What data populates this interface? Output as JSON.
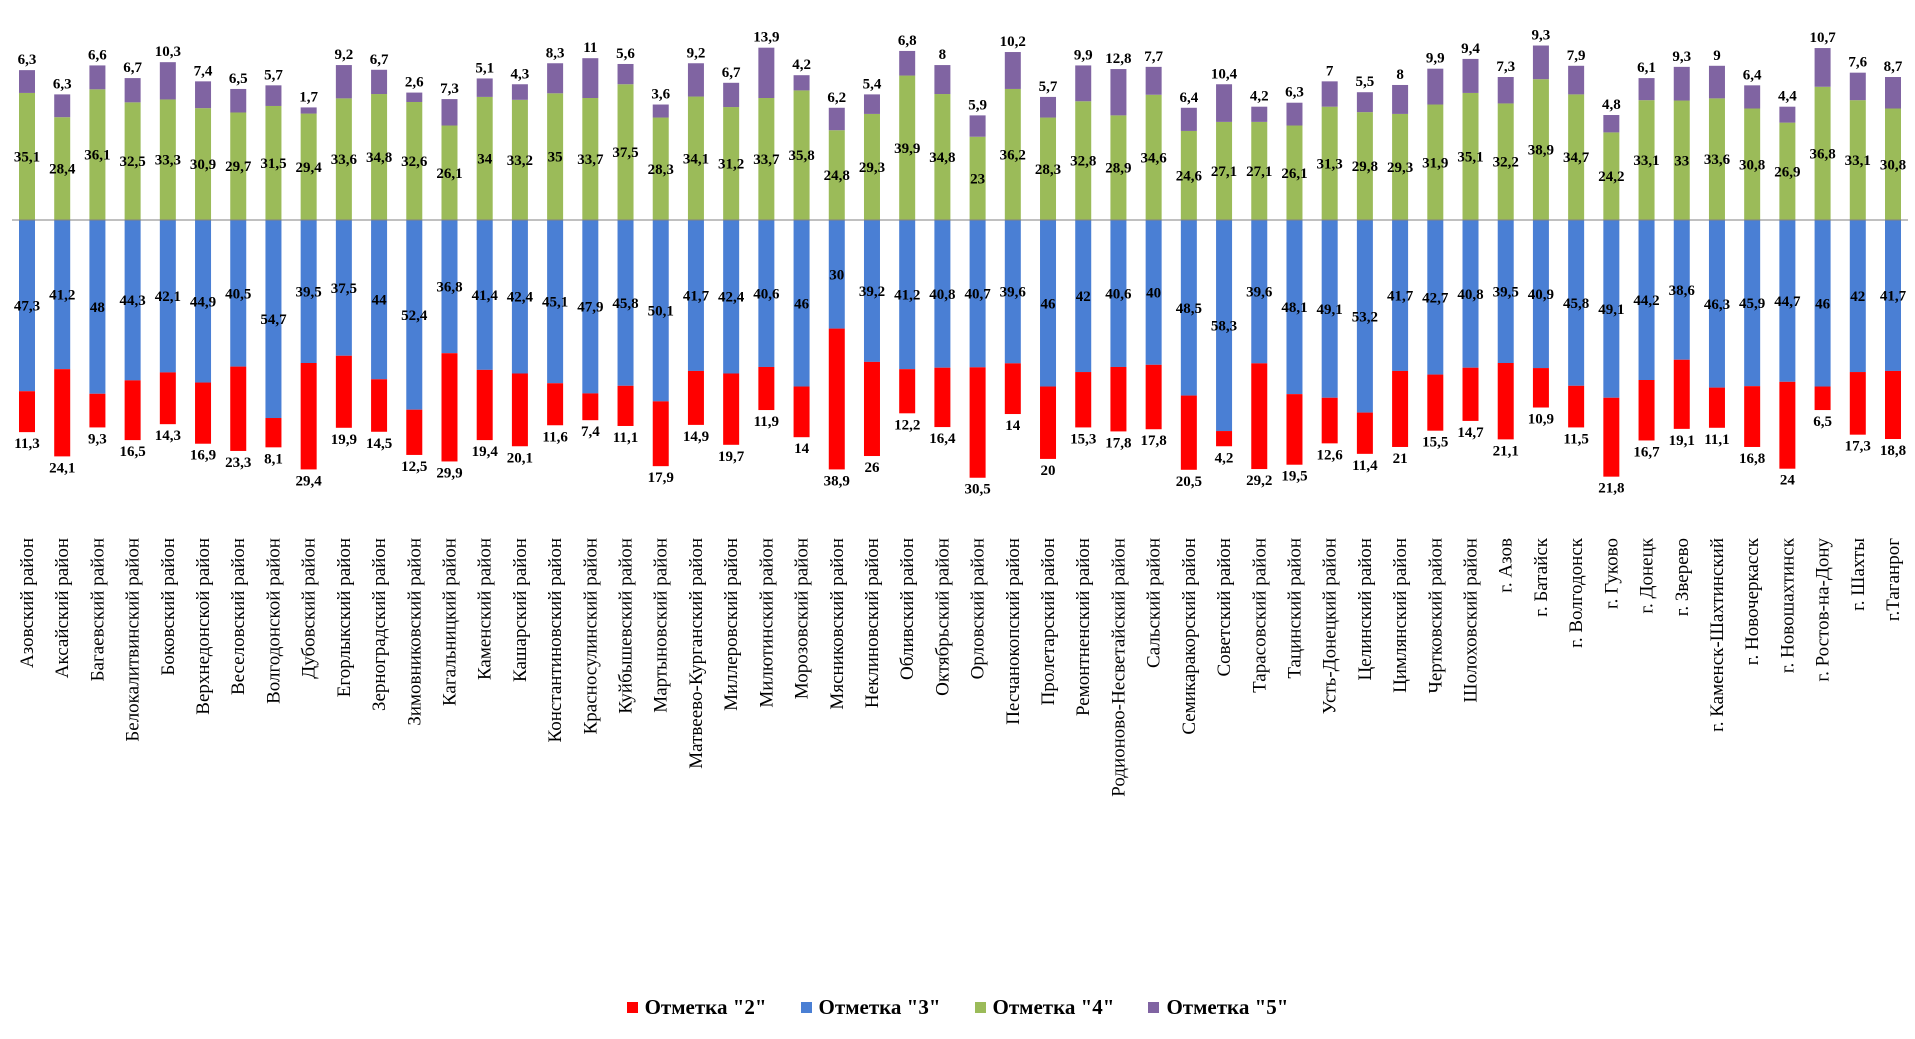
{
  "chart_data": {
    "type": "bar",
    "title": "",
    "xlabel": "",
    "ylabel": "",
    "legend_position": "bottom",
    "grid": false,
    "categories": [
      "Азовский район",
      "Аксайский район",
      "Багаевский район",
      "Белокалитвинский район",
      "Боковский район",
      "Верхнедонской район",
      "Веселовский район",
      "Волгодонской район",
      "Дубовский район",
      "Егорлыкский район",
      "Зерноградский район",
      "Зимовниковский район",
      "Кагальницкий район",
      "Каменский район",
      "Кашарский район",
      "Константиновский район",
      "Красносулинский район",
      "Куйбышевский район",
      "Мартыновский район",
      "Матвеево-Курганский район",
      "Миллеровский район",
      "Милютинский район",
      "Морозовский район",
      "Мясниковский район",
      "Неклиновский район",
      "Обливский район",
      "Октябрьский район",
      "Орловский район",
      "Песчанокопский район",
      "Пролетарский район",
      "Ремонтненский район",
      "Родионово-Несветайский район",
      "Сальский район",
      "Семикаракорский район",
      "Советский район",
      "Тарасовский район",
      "Тацинский район",
      "Усть-Донецкий район",
      "Целинский район",
      "Цимлянский район",
      "Чертковский район",
      "Шолоховский район",
      "г. Азов",
      "г. Батайск",
      "г. Волгодонск",
      "г. Гуково",
      "г. Донецк",
      "г. Зверево",
      "г. Каменск-Шахтинский",
      "г. Новочеркасск",
      "г. Новошахтинск",
      "г. Ростов-на-Дону",
      "г. Шахты",
      "г.Таганрог"
    ],
    "series": [
      {
        "name": "Отметка \"2\"",
        "color": "#ff0000",
        "direction": "down",
        "values": [
          11.3,
          24.1,
          9.3,
          16.5,
          14.3,
          16.9,
          23.3,
          8.1,
          29.4,
          19.9,
          14.5,
          12.5,
          29.9,
          19.4,
          20.1,
          11.6,
          7.4,
          11.1,
          17.9,
          14.9,
          19.7,
          11.9,
          14,
          38.9,
          26,
          12.2,
          16.4,
          30.5,
          14,
          20,
          15.3,
          17.8,
          17.8,
          20.5,
          4.2,
          29.2,
          19.5,
          12.6,
          11.4,
          21,
          15.5,
          14.7,
          21.1,
          10.9,
          11.5,
          21.8,
          16.7,
          19.1,
          11.1,
          16.8,
          24,
          6.5,
          17.3,
          18.8
        ]
      },
      {
        "name": "Отметка \"3\"",
        "color": "#4a7fd4",
        "direction": "down",
        "values": [
          47.3,
          41.2,
          48,
          44.3,
          42.1,
          44.9,
          40.5,
          54.7,
          39.5,
          37.5,
          44,
          52.4,
          36.8,
          41.4,
          42.4,
          45.1,
          47.9,
          45.8,
          50.1,
          41.7,
          42.4,
          40.6,
          46,
          30,
          39.2,
          41.2,
          40.8,
          40.7,
          39.6,
          46,
          42,
          40.6,
          40,
          48.5,
          58.3,
          39.6,
          48.1,
          49.1,
          53.2,
          41.7,
          42.7,
          40.8,
          39.5,
          40.9,
          45.8,
          49.1,
          44.2,
          38.6,
          46.3,
          45.9,
          44.7,
          46,
          42,
          41.7
        ]
      },
      {
        "name": "Отметка \"4\"",
        "color": "#9bbb59",
        "direction": "up",
        "values": [
          35.1,
          28.4,
          36.1,
          32.5,
          33.3,
          30.9,
          29.7,
          31.5,
          29.4,
          33.6,
          34.8,
          32.6,
          26.1,
          34,
          33.2,
          35,
          33.7,
          37.5,
          28.3,
          34.1,
          31.2,
          33.7,
          35.8,
          24.8,
          29.3,
          39.9,
          34.8,
          23,
          36.2,
          28.3,
          32.8,
          28.9,
          34.6,
          24.6,
          27.1,
          27.1,
          26.1,
          31.3,
          29.8,
          29.3,
          31.9,
          35.1,
          32.2,
          38.9,
          34.7,
          24.2,
          33.1,
          33,
          33.6,
          30.8,
          26.9,
          36.8,
          33.1,
          30.8
        ]
      },
      {
        "name": "Отметка \"5\"",
        "color": "#8064a2",
        "direction": "up",
        "values": [
          6.3,
          6.3,
          6.6,
          6.7,
          10.3,
          7.4,
          6.5,
          5.7,
          1.7,
          9.2,
          6.7,
          2.6,
          7.3,
          5.1,
          4.3,
          8.3,
          11,
          5.6,
          3.6,
          9.2,
          6.7,
          13.9,
          4.2,
          6.2,
          5.4,
          6.8,
          8,
          5.9,
          10.2,
          5.7,
          9.9,
          12.8,
          7.7,
          6.4,
          10.4,
          4.2,
          6.3,
          7,
          5.5,
          8,
          9.9,
          9.4,
          7.3,
          9.3,
          7.9,
          4.8,
          6.1,
          9.3,
          9,
          6.4,
          4.4,
          10.7,
          7.6,
          8.7
        ]
      }
    ]
  }
}
